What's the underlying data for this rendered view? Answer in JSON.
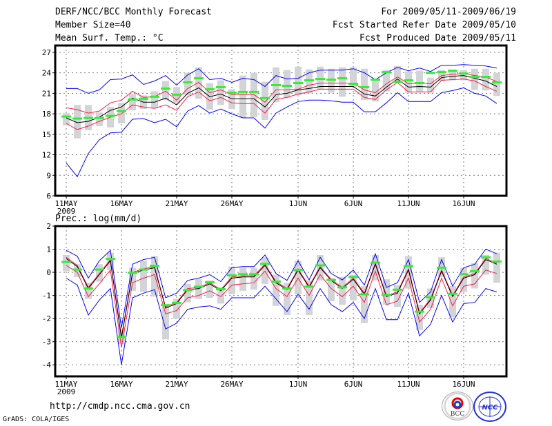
{
  "header": {
    "title": "DERF/NCC/BCC Monthly Forecast",
    "member_size": "Member Size=40",
    "variable": "Mean Surf. Temp.: °C",
    "period": "For 2009/05/11-2009/06/19",
    "start_date": "Fcst Started Refer Date 2009/05/10",
    "produced_date": "Fcst Produced Date 2009/05/11"
  },
  "footer": {
    "url": "http://cmdp.ncc.cma.gov.cn",
    "grads": "GrADS: COLA/IGES",
    "logos": [
      "BCC",
      "NCC"
    ]
  },
  "colors": {
    "mean": "#000000",
    "spread": "#ff1a40",
    "extreme": "#0000ff",
    "obs": "#33ee33",
    "box": "#d3d4d8"
  },
  "chart_data": [
    {
      "type": "line",
      "title": "Mean Surf. Temp.: °C",
      "xlabel": "",
      "ylabel": "°C",
      "ylim": [
        6,
        28
      ],
      "yticks": [
        6,
        9,
        12,
        15,
        18,
        21,
        24,
        27
      ],
      "xticks": [
        {
          "day": 0,
          "label": "11MAY",
          "sub": "2009"
        },
        {
          "day": 5,
          "label": "16MAY"
        },
        {
          "day": 10,
          "label": "21MAY"
        },
        {
          "day": 15,
          "label": "26MAY"
        },
        {
          "day": 21,
          "label": "1JUN"
        },
        {
          "day": 26,
          "label": "6JUN"
        },
        {
          "day": 31,
          "label": "11JUN"
        },
        {
          "day": 36,
          "label": "16JUN"
        }
      ],
      "grid": true,
      "series": [
        {
          "name": "ensemble-mean",
          "color": "mean",
          "values": [
            17.4,
            16.7,
            16.9,
            17.5,
            18.5,
            19.0,
            20.3,
            19.7,
            19.7,
            20.3,
            19.3,
            21.0,
            21.8,
            20.5,
            20.9,
            20.2,
            20.2,
            20.2,
            19.0,
            20.8,
            21.0,
            21.5,
            21.7,
            22.0,
            22.0,
            22.0,
            22.0,
            20.9,
            20.6,
            21.9,
            23.1,
            21.9,
            22.0,
            21.9,
            23.3,
            23.5,
            23.6,
            23.2,
            22.8,
            22.0
          ]
        },
        {
          "name": "spread-upper",
          "color": "spread",
          "values": [
            18.9,
            18.6,
            18.1,
            18.4,
            19.6,
            20.0,
            21.3,
            20.4,
            20.5,
            21.3,
            20.0,
            21.7,
            22.6,
            21.1,
            21.5,
            20.8,
            20.8,
            20.8,
            19.7,
            21.5,
            21.5,
            21.6,
            22.2,
            22.5,
            22.5,
            22.5,
            22.5,
            21.5,
            21.1,
            22.4,
            23.4,
            22.4,
            22.5,
            22.4,
            23.6,
            23.8,
            23.9,
            23.6,
            23.4,
            22.7
          ]
        },
        {
          "name": "spread-lower",
          "color": "spread",
          "values": [
            16.6,
            15.7,
            16.2,
            16.9,
            17.5,
            18.0,
            19.3,
            19.0,
            18.8,
            19.3,
            18.5,
            20.5,
            21.2,
            19.9,
            20.4,
            19.6,
            19.5,
            19.5,
            18.1,
            20.1,
            20.4,
            20.9,
            21.2,
            21.6,
            21.6,
            21.6,
            21.6,
            20.4,
            20.1,
            21.5,
            22.6,
            21.2,
            21.2,
            21.2,
            22.9,
            23.0,
            23.1,
            22.8,
            22.0,
            21.3
          ]
        },
        {
          "name": "maximum",
          "color": "extreme",
          "values": [
            21.7,
            21.7,
            21.0,
            21.5,
            23.0,
            23.1,
            23.7,
            22.3,
            22.8,
            23.6,
            22.2,
            23.7,
            24.6,
            23.0,
            23.2,
            22.6,
            23.2,
            23.0,
            22.0,
            23.6,
            23.1,
            23.2,
            24.0,
            24.4,
            24.4,
            24.4,
            24.6,
            24.0,
            23.0,
            24.0,
            24.8,
            24.3,
            24.7,
            24.2,
            25.1,
            25.1,
            25.2,
            25.1,
            25.0,
            24.7
          ]
        },
        {
          "name": "minimum",
          "color": "extreme",
          "values": [
            10.8,
            8.8,
            12.2,
            14.2,
            15.2,
            15.3,
            17.2,
            17.3,
            16.7,
            17.2,
            16.1,
            18.4,
            19.2,
            18.1,
            18.7,
            18.0,
            17.4,
            17.4,
            15.9,
            18.1,
            19.0,
            19.8,
            20.0,
            20.0,
            19.9,
            19.7,
            19.7,
            18.3,
            18.3,
            19.6,
            21.1,
            19.8,
            19.8,
            19.8,
            21.1,
            21.4,
            21.8,
            21.0,
            20.6,
            19.5
          ]
        },
        {
          "name": "observed",
          "color": "obs",
          "values": [
            17.6,
            17.3,
            17.4,
            17.4,
            17.7,
            18.4,
            20.1,
            20.2,
            20.5,
            21.7,
            20.8,
            22.6,
            23.2,
            21.6,
            21.9,
            21.1,
            21.2,
            21.2,
            20.3,
            22.2,
            22.1,
            22.5,
            22.9,
            23.1,
            23.0,
            23.2,
            22.4,
            21.9,
            23.0,
            24.1,
            22.7,
            22.9,
            22.5,
            24.0,
            24.1,
            24.3,
            23.9,
            23.4,
            23.4,
            22.6
          ]
        }
      ],
      "boxes": {
        "low": [
          16.3,
          14.4,
          15.6,
          16.2,
          16.0,
          16.6,
          18.5,
          18.7,
          18.8,
          20.0,
          19.6,
          20.7,
          20.2,
          18.6,
          19.3,
          18.7,
          17.4,
          17.5,
          17.1,
          19.7,
          20.3,
          20.7,
          21.0,
          21.6,
          21.1,
          20.5,
          21.9,
          20.0,
          19.8,
          21.3,
          22.6,
          21.1,
          21.2,
          21.1,
          22.8,
          22.9,
          22.9,
          21.5,
          21.4,
          20.6
        ],
        "high": [
          18.1,
          19.3,
          19.3,
          18.2,
          19.0,
          19.6,
          20.9,
          20.7,
          21.3,
          22.8,
          21.9,
          24.0,
          24.8,
          22.5,
          22.9,
          21.6,
          23.6,
          24.0,
          22.7,
          24.8,
          24.4,
          24.9,
          24.5,
          24.9,
          24.6,
          24.8,
          24.8,
          24.6,
          23.0,
          24.4,
          25.0,
          24.2,
          24.3,
          23.3,
          24.4,
          24.5,
          24.4,
          24.6,
          24.6,
          24.0
        ]
      }
    },
    {
      "type": "line",
      "title": "Prec.: log(mm/d)",
      "xlabel": "",
      "ylabel": "log(mm/d)",
      "ylim": [
        -4.5,
        2
      ],
      "yticks": [
        -4,
        -3,
        -2,
        -1,
        0,
        1,
        2
      ],
      "xticks": [
        {
          "day": 0,
          "label": "11MAY",
          "sub": "2009"
        },
        {
          "day": 5,
          "label": "16MAY"
        },
        {
          "day": 10,
          "label": "21MAY"
        },
        {
          "day": 15,
          "label": "26MAY"
        },
        {
          "day": 21,
          "label": "1JUN"
        },
        {
          "day": 26,
          "label": "6JUN"
        },
        {
          "day": 31,
          "label": "11JUN"
        },
        {
          "day": 36,
          "label": "16JUN"
        }
      ],
      "grid": true,
      "series": [
        {
          "name": "ensemble-mean",
          "color": "mean",
          "values": [
            0.6,
            0.25,
            -0.7,
            -0.1,
            0.5,
            -2.85,
            -0.05,
            0.1,
            0.2,
            -1.55,
            -1.35,
            -0.75,
            -0.7,
            -0.5,
            -0.8,
            -0.25,
            -0.2,
            -0.2,
            0.3,
            -0.45,
            -0.75,
            0.1,
            -0.65,
            0.2,
            -0.35,
            -0.7,
            -0.3,
            -0.95,
            0.35,
            -1.05,
            -0.9,
            0.1,
            -1.8,
            -1.2,
            0.05,
            -1.05,
            -0.25,
            -0.1,
            0.55,
            0.35
          ]
        },
        {
          "name": "spread-upper",
          "color": "spread",
          "values": [
            0.65,
            0.3,
            -0.65,
            -0.05,
            0.55,
            -2.8,
            0,
            0.15,
            0.25,
            -1.5,
            -1.3,
            -0.7,
            -0.65,
            -0.45,
            -0.75,
            -0.2,
            -0.15,
            -0.15,
            0.35,
            -0.4,
            -0.7,
            0.15,
            -0.6,
            0.25,
            -0.3,
            -0.65,
            -0.25,
            -0.9,
            0.4,
            -1.0,
            -0.85,
            0.15,
            -1.75,
            -1.15,
            0.1,
            -1.0,
            -0.2,
            -0.05,
            0.6,
            0.4
          ]
        },
        {
          "name": "spread-lower",
          "color": "spread",
          "values": [
            0.3,
            0.0,
            -1.05,
            -0.5,
            0.1,
            -3.25,
            -0.45,
            -0.25,
            -0.1,
            -1.8,
            -1.65,
            -1.1,
            -1.0,
            -0.8,
            -1.05,
            -0.55,
            -0.5,
            -0.45,
            0.05,
            -0.7,
            -1.05,
            -0.25,
            -1.0,
            -0.1,
            -0.7,
            -1.05,
            -0.6,
            -1.3,
            0.05,
            -1.4,
            -1.25,
            -0.25,
            -2.15,
            -1.6,
            -0.25,
            -1.45,
            -0.6,
            -0.5,
            0.1,
            -0.05
          ]
        },
        {
          "name": "maximum",
          "color": "extreme",
          "values": [
            0.95,
            0.7,
            -0.25,
            0.5,
            0.95,
            -2.4,
            0.35,
            0.55,
            0.65,
            -1.1,
            -0.9,
            -0.35,
            -0.25,
            -0.1,
            -0.4,
            0.2,
            0.25,
            0.25,
            0.75,
            -0.05,
            -0.35,
            0.5,
            -0.33,
            0.65,
            -0.05,
            -0.33,
            0.1,
            -0.55,
            0.8,
            -0.65,
            -0.45,
            0.55,
            -1.3,
            -0.85,
            0.55,
            -0.6,
            0.2,
            0.35,
            1.0,
            0.8
          ]
        },
        {
          "name": "minimum",
          "color": "extreme",
          "values": [
            -0.25,
            -0.55,
            -1.85,
            -1.2,
            -0.7,
            -4.0,
            -1.1,
            -0.9,
            -0.75,
            -2.45,
            -2.2,
            -1.6,
            -1.5,
            -1.45,
            -1.6,
            -1.1,
            -1.1,
            -1.1,
            -0.6,
            -1.15,
            -1.7,
            -0.95,
            -1.6,
            -0.7,
            -1.4,
            -1.7,
            -1.3,
            -2.0,
            -0.7,
            -2.05,
            -2.05,
            -0.9,
            -2.75,
            -2.25,
            -1.0,
            -2.15,
            -1.35,
            -1.3,
            -0.7,
            -0.85
          ]
        },
        {
          "name": "observed",
          "color": "obs",
          "values": [
            0.45,
            0.12,
            -0.7,
            0.12,
            0.58,
            -2.8,
            -0.02,
            0.12,
            0.28,
            -1.42,
            -1.32,
            -0.77,
            -0.62,
            -0.43,
            -0.73,
            -0.13,
            -0.08,
            -0.08,
            0.37,
            -0.4,
            -0.7,
            0.1,
            -0.62,
            0.3,
            -0.33,
            -0.65,
            -0.2,
            -0.95,
            0.42,
            -0.98,
            -0.75,
            0.27,
            -1.7,
            -1.08,
            0.2,
            -0.93,
            -0.08,
            0.05,
            0.65,
            0.47
          ]
        }
      ],
      "boxes": {
        "low": [
          0.05,
          -0.2,
          -1.15,
          -0.4,
          0.1,
          -3.1,
          -0.8,
          -0.85,
          -1.05,
          -2.9,
          -2.0,
          -1.3,
          -1.15,
          -1.1,
          -1.35,
          -0.95,
          -0.8,
          -0.75,
          -0.5,
          -1.45,
          -1.85,
          -0.95,
          -1.85,
          -0.35,
          -1.25,
          -1.4,
          -1.2,
          -2.2,
          -0.35,
          -1.4,
          -1.5,
          -0.7,
          -2.5,
          -1.55,
          -0.2,
          -1.95,
          -0.85,
          -0.7,
          -0.1,
          -0.45
        ],
        "high": [
          0.75,
          0.35,
          -0.45,
          0.35,
          0.85,
          -2.4,
          0.2,
          0.5,
          0.7,
          -1.4,
          -1.15,
          -0.5,
          -0.3,
          -0.35,
          -0.65,
          0.25,
          0.2,
          0.2,
          0.65,
          -0.1,
          -0.45,
          0.5,
          -0.35,
          0.75,
          -0.25,
          -0.2,
          -0.1,
          -0.6,
          0.75,
          -0.3,
          -0.55,
          0.7,
          -1.4,
          -0.7,
          0.65,
          -0.6,
          0.2,
          0.4,
          0.75,
          0.85
        ]
      }
    }
  ]
}
